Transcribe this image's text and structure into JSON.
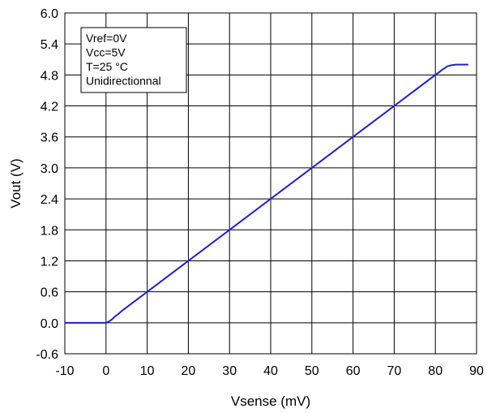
{
  "chart_data": {
    "type": "line",
    "xlabel": "Vsense (mV)",
    "ylabel": "Vout (V)",
    "xlim": [
      -10,
      90
    ],
    "ylim": [
      -0.6,
      6.0
    ],
    "x_ticks": [
      "-10",
      "0",
      "10",
      "20",
      "30",
      "40",
      "50",
      "60",
      "70",
      "80",
      "90"
    ],
    "y_ticks": [
      "6.0",
      "5.4",
      "4.8",
      "4.2",
      "3.6",
      "3.0",
      "2.4",
      "1.8",
      "1.2",
      "0.6",
      "0.0",
      "-0.6"
    ],
    "grid": true,
    "legend_position": "top-left",
    "annotation_lines": [
      "Vref=0V",
      "Vcc=5V",
      "T=25 °C",
      "Unidirectionnal"
    ],
    "series": [
      {
        "color": "#1f1fd6",
        "x": [
          -10,
          0,
          0.5,
          1,
          1.5,
          2,
          3,
          4,
          10,
          20,
          30,
          40,
          50,
          60,
          70,
          80,
          81,
          82,
          83,
          84,
          85,
          86,
          88
        ],
        "y": [
          0.0,
          0.0,
          0.015,
          0.04,
          0.07,
          0.11,
          0.17,
          0.24,
          0.6,
          1.2,
          1.8,
          2.4,
          3.0,
          3.6,
          4.2,
          4.8,
          4.86,
          4.92,
          4.97,
          4.99,
          5.0,
          5.0,
          5.0
        ]
      }
    ]
  }
}
